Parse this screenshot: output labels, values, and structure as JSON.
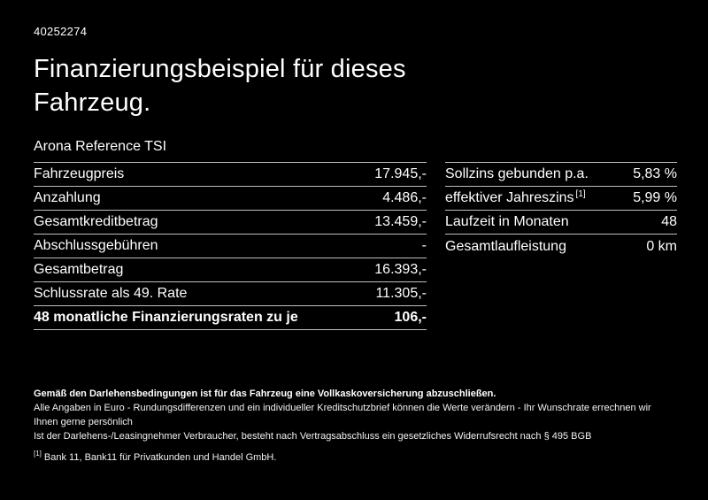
{
  "doc": {
    "id": "40252274",
    "title": "Finanzierungsbeispiel für dieses Fahrzeug.",
    "model": "Arona Reference TSI"
  },
  "left_table": {
    "rows": [
      {
        "label": "Fahrzeugpreis",
        "value": "17.945,-"
      },
      {
        "label": "Anzahlung",
        "value": "4.486,-"
      },
      {
        "label": "Gesamtkreditbetrag",
        "value": "13.459,-"
      },
      {
        "label": "Abschlussgebühren",
        "value": "-"
      },
      {
        "label": "Gesamtbetrag",
        "value": "16.393,-"
      },
      {
        "label": "Schlussrate als 49. Rate",
        "value": "11.305,-"
      },
      {
        "label": "48 monatliche Finanzierungsraten zu je",
        "value": "106,-"
      }
    ]
  },
  "right_table": {
    "rows": [
      {
        "label": "Sollzins gebunden p.a.",
        "value": "5,83 %"
      },
      {
        "label": "effektiver Jahreszins",
        "sup": "[1]",
        "value": "5,99 %"
      },
      {
        "label": "Laufzeit in Monaten",
        "value": "48"
      },
      {
        "label": "Gesamtlaufleistung",
        "value": "0 km"
      }
    ]
  },
  "footnotes": {
    "bold": "Gemäß den Darlehensbedingungen ist für das Fahrzeug eine Vollkaskoversicherung abzuschließen.",
    "line1": "Alle Angaben in Euro - Rundungsdifferenzen und ein individueller Kreditschutzbrief können die Werte verändern - Ihr Wunschrate errechnen wir Ihnen gerne persönlich",
    "line2": "Ist der Darlehens-/Leasingnehmer Verbraucher, besteht nach Vertragsabschluss ein gesetzliches Widerrufsrecht nach § 495 BGB",
    "marker": "[1]",
    "bank": "Bank 11, Bank11 für Privatkunden und Handel GmbH."
  },
  "colors": {
    "background": "#000000",
    "text": "#ffffff",
    "divider": "#bfbfbf"
  }
}
